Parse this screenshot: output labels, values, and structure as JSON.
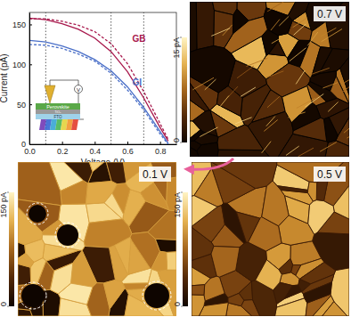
{
  "chart_data": [
    {
      "type": "line",
      "x_label": "Voltage (V)",
      "y_label": "Current (pA)",
      "x": [
        0,
        0.1,
        0.2,
        0.3,
        0.4,
        0.5,
        0.6,
        0.7,
        0.8,
        0.85
      ],
      "series": [
        {
          "name": "GB",
          "color": "#a8184c",
          "line_style": "solid",
          "values": [
            158,
            156,
            151,
            144,
            133,
            116,
            91,
            58,
            21,
            4
          ]
        },
        {
          "color": "#a8184c",
          "line_style": "dashed",
          "values": [
            157,
            157,
            154,
            149,
            141,
            126,
            101,
            66,
            26,
            6
          ]
        },
        {
          "name": "GI",
          "color": "#4a6fc8",
          "line_style": "solid",
          "values": [
            130,
            128,
            123,
            116,
            106,
            92,
            72,
            46,
            16,
            1
          ]
        },
        {
          "color": "#4a6fc8",
          "line_style": "dashed",
          "values": [
            125,
            124,
            120,
            113,
            104,
            89,
            68,
            43,
            13,
            0
          ]
        }
      ],
      "xlim": [
        0,
        0.9
      ],
      "ylim": [
        0,
        165
      ],
      "xticks": [
        {
          "value": 0,
          "label": "0.0"
        },
        0.2,
        0.4,
        0.6,
        0.8
      ],
      "yticks": [
        0,
        50,
        100,
        150
      ],
      "vlines": [
        0.1,
        0.5,
        0.7
      ],
      "annotations": [
        {
          "text": "GB",
          "x": 0.63,
          "y": 128
        },
        {
          "text": "GI",
          "x": 0.63,
          "y": 74
        }
      ],
      "inset": {
        "labels": [
          "Perovskite",
          "TiO₂",
          "FTO",
          "V"
        ]
      }
    },
    {
      "type": "image",
      "title": "0.7 V",
      "colorbar": {
        "range": [
          0,
          15
        ],
        "ticks": [
          0,
          {
            "value": 15,
            "label": "15 pA"
          }
        ]
      }
    },
    {
      "type": "image",
      "title": "0.1 V",
      "colorbar": {
        "range": [
          0,
          150
        ],
        "ticks": [
          0,
          {
            "value": 150,
            "label": "150 pA"
          }
        ]
      }
    },
    {
      "type": "image",
      "title": "0.5 V",
      "colorbar": {
        "range": [
          0,
          150
        ],
        "ticks": [
          0,
          {
            "value": 150,
            "label": "150 pA"
          }
        ]
      }
    }
  ]
}
